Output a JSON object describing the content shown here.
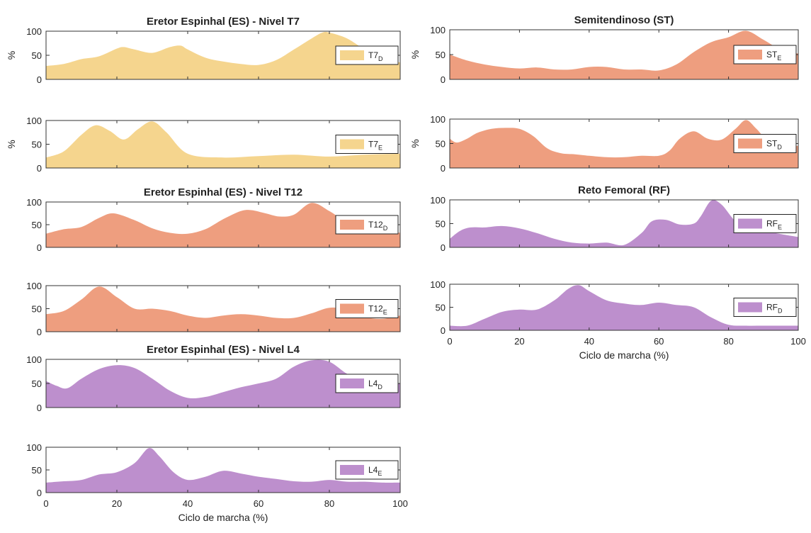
{
  "colors": {
    "yellow": "#f5d58e",
    "salmon": "#ee9e7f",
    "purple": "#bd8fcd",
    "axis": "#333333",
    "text": "#222222"
  },
  "chart_data": [
    {
      "type": "area",
      "title": "Eretor Espinhal (ES) - Nivel T7",
      "ylabel": "%",
      "xlabel": "",
      "xlim": [
        0,
        100
      ],
      "ylim": [
        0,
        100
      ],
      "yticks": [
        "0",
        "50",
        "100"
      ],
      "xticks": [],
      "legend": {
        "label": "T7",
        "sub": "D",
        "placement": "right"
      },
      "color": "yellow",
      "x": [
        0,
        5,
        10,
        15,
        20,
        22,
        25,
        30,
        35,
        38,
        40,
        45,
        50,
        55,
        60,
        65,
        70,
        75,
        78,
        80,
        85,
        90,
        95,
        100
      ],
      "y": [
        28,
        32,
        42,
        48,
        64,
        67,
        62,
        55,
        67,
        70,
        62,
        45,
        37,
        32,
        30,
        40,
        62,
        85,
        97,
        97,
        85,
        62,
        45,
        35
      ]
    },
    {
      "type": "area",
      "title": "",
      "ylabel": "%",
      "xlabel": "",
      "xlim": [
        0,
        100
      ],
      "ylim": [
        0,
        100
      ],
      "yticks": [
        "0",
        "50",
        "100"
      ],
      "xticks": [],
      "legend": {
        "label": "T7",
        "sub": "E",
        "placement": "right"
      },
      "color": "yellow",
      "x": [
        0,
        5,
        10,
        14,
        18,
        22,
        26,
        30,
        34,
        40,
        50,
        60,
        70,
        80,
        90,
        100
      ],
      "y": [
        22,
        35,
        70,
        90,
        78,
        60,
        82,
        98,
        75,
        30,
        22,
        25,
        28,
        24,
        28,
        30
      ]
    },
    {
      "type": "area",
      "title": "Eretor Espinhal (ES) - Nivel T12",
      "ylabel": "",
      "xlabel": "",
      "xlim": [
        0,
        100
      ],
      "ylim": [
        0,
        100
      ],
      "yticks": [
        "0",
        "50",
        "100"
      ],
      "xticks": [],
      "legend": {
        "label": "T12",
        "sub": "D",
        "placement": "right"
      },
      "color": "salmon",
      "x": [
        0,
        5,
        10,
        15,
        19,
        25,
        30,
        35,
        40,
        45,
        50,
        55,
        58,
        62,
        66,
        70,
        75,
        80,
        85,
        90,
        95,
        100
      ],
      "y": [
        30,
        40,
        45,
        65,
        75,
        60,
        42,
        32,
        30,
        40,
        62,
        80,
        82,
        75,
        68,
        72,
        98,
        80,
        55,
        45,
        38,
        32
      ]
    },
    {
      "type": "area",
      "title": "",
      "ylabel": "",
      "xlabel": "",
      "xlim": [
        0,
        100
      ],
      "ylim": [
        0,
        100
      ],
      "yticks": [
        "0",
        "50",
        "100"
      ],
      "xticks": [],
      "legend": {
        "label": "T12",
        "sub": "E",
        "placement": "right"
      },
      "color": "salmon",
      "x": [
        0,
        5,
        10,
        15,
        20,
        25,
        30,
        35,
        40,
        45,
        50,
        55,
        60,
        65,
        70,
        75,
        80,
        85,
        90,
        95,
        100
      ],
      "y": [
        38,
        45,
        70,
        98,
        75,
        50,
        50,
        45,
        35,
        30,
        35,
        38,
        35,
        30,
        30,
        40,
        52,
        48,
        32,
        28,
        35
      ]
    },
    {
      "type": "area",
      "title": "Eretor Espinhal (ES) - Nivel L4",
      "ylabel": "",
      "xlabel": "",
      "xlim": [
        0,
        100
      ],
      "ylim": [
        0,
        100
      ],
      "yticks": [
        "0",
        "50",
        "100"
      ],
      "xticks": [],
      "legend": {
        "label": "L4",
        "sub": "D",
        "placement": "right"
      },
      "color": "purple",
      "x": [
        0,
        3,
        6,
        10,
        15,
        20,
        25,
        30,
        35,
        40,
        45,
        50,
        55,
        60,
        65,
        70,
        75,
        80,
        85,
        90,
        95,
        100
      ],
      "y": [
        55,
        45,
        40,
        60,
        80,
        88,
        82,
        60,
        35,
        20,
        22,
        32,
        42,
        50,
        60,
        85,
        98,
        95,
        70,
        55,
        50,
        50
      ]
    },
    {
      "type": "area",
      "title": "",
      "ylabel": "",
      "xlabel": "Ciclo de marcha (%)",
      "xlim": [
        0,
        100
      ],
      "ylim": [
        0,
        100
      ],
      "yticks": [
        "0",
        "50",
        "100"
      ],
      "xticks": [
        "0",
        "20",
        "40",
        "60",
        "80",
        "100"
      ],
      "legend": {
        "label": "L4",
        "sub": "E",
        "placement": "right"
      },
      "color": "purple",
      "x": [
        0,
        5,
        10,
        15,
        20,
        25,
        29,
        32,
        36,
        40,
        45,
        50,
        55,
        60,
        65,
        70,
        75,
        80,
        85,
        90,
        95,
        100
      ],
      "y": [
        22,
        25,
        28,
        40,
        45,
        65,
        98,
        80,
        45,
        28,
        35,
        48,
        42,
        35,
        30,
        25,
        24,
        28,
        24,
        24,
        22,
        22
      ]
    },
    {
      "type": "area",
      "title": "Semitendinoso (ST)",
      "ylabel": "%",
      "xlabel": "",
      "xlim": [
        0,
        100
      ],
      "ylim": [
        0,
        100
      ],
      "yticks": [
        "0",
        "50",
        "100"
      ],
      "xticks": [],
      "legend": {
        "label": "ST",
        "sub": "E",
        "placement": "right"
      },
      "color": "salmon",
      "x": [
        0,
        5,
        10,
        15,
        20,
        25,
        30,
        35,
        40,
        45,
        50,
        55,
        60,
        65,
        70,
        75,
        80,
        85,
        90,
        95,
        100
      ],
      "y": [
        50,
        38,
        30,
        25,
        22,
        24,
        20,
        20,
        25,
        25,
        20,
        20,
        18,
        30,
        55,
        75,
        85,
        98,
        80,
        60,
        52
      ]
    },
    {
      "type": "area",
      "title": "",
      "ylabel": "%",
      "xlabel": "",
      "xlim": [
        0,
        100
      ],
      "ylim": [
        0,
        100
      ],
      "yticks": [
        "0",
        "50",
        "100"
      ],
      "xticks": [],
      "legend": {
        "label": "ST",
        "sub": "D",
        "placement": "right"
      },
      "color": "salmon",
      "x": [
        0,
        2,
        5,
        8,
        12,
        16,
        20,
        24,
        28,
        32,
        36,
        40,
        45,
        50,
        55,
        60,
        63,
        66,
        70,
        74,
        78,
        82,
        85,
        88,
        92,
        96,
        100
      ],
      "y": [
        60,
        52,
        60,
        72,
        80,
        82,
        80,
        65,
        40,
        30,
        28,
        25,
        22,
        22,
        25,
        25,
        35,
        60,
        75,
        60,
        58,
        80,
        98,
        80,
        50,
        45,
        45
      ]
    },
    {
      "type": "area",
      "title": "Reto Femoral (RF)",
      "ylabel": "",
      "xlabel": "",
      "xlim": [
        0,
        100
      ],
      "ylim": [
        0,
        100
      ],
      "yticks": [
        "0",
        "50",
        "100"
      ],
      "xticks": [],
      "legend": {
        "label": "RF",
        "sub": "E",
        "placement": "right"
      },
      "color": "purple",
      "x": [
        0,
        3,
        6,
        10,
        15,
        20,
        25,
        30,
        35,
        40,
        45,
        50,
        55,
        58,
        62,
        66,
        70,
        72,
        75,
        78,
        82,
        86,
        90,
        95,
        100
      ],
      "y": [
        18,
        35,
        42,
        42,
        45,
        40,
        30,
        18,
        10,
        8,
        10,
        5,
        30,
        55,
        58,
        48,
        50,
        65,
        98,
        90,
        55,
        40,
        35,
        28,
        22
      ]
    },
    {
      "type": "area",
      "title": "",
      "ylabel": "",
      "xlabel": "Ciclo de marcha (%)",
      "xlim": [
        0,
        100
      ],
      "ylim": [
        0,
        100
      ],
      "yticks": [
        "0",
        "50",
        "100"
      ],
      "xticks": [
        "0",
        "20",
        "40",
        "60",
        "80",
        "100"
      ],
      "legend": {
        "label": "RF",
        "sub": "D",
        "placement": "right"
      },
      "color": "purple",
      "x": [
        0,
        5,
        10,
        15,
        20,
        25,
        30,
        34,
        37,
        40,
        45,
        50,
        55,
        60,
        65,
        70,
        75,
        80,
        85,
        90,
        95,
        100
      ],
      "y": [
        10,
        10,
        25,
        40,
        45,
        45,
        65,
        90,
        98,
        85,
        65,
        58,
        55,
        60,
        55,
        50,
        28,
        12,
        10,
        10,
        10,
        10
      ]
    }
  ]
}
